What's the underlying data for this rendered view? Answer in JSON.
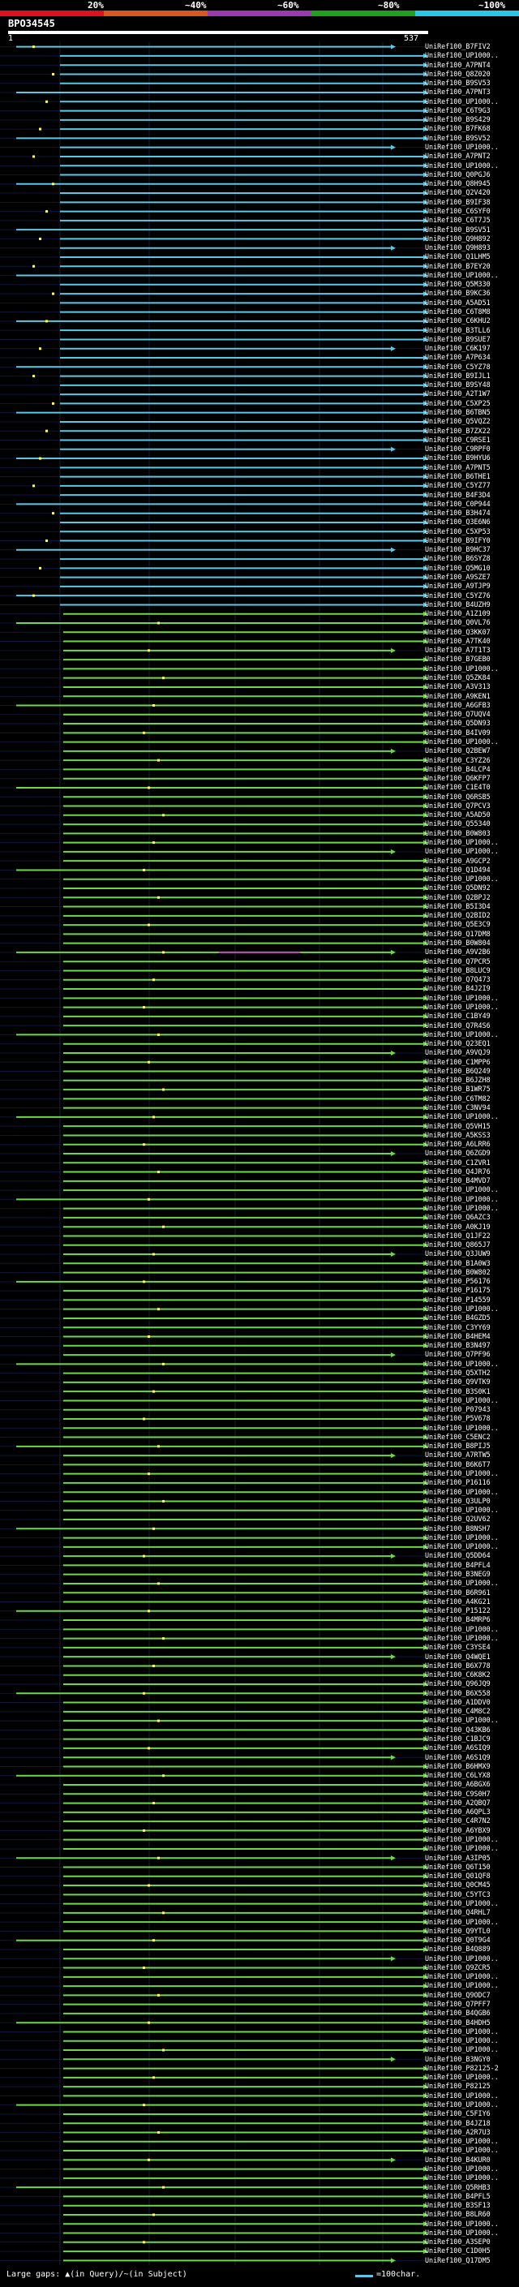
{
  "legend": {
    "ticks": [
      "20%",
      "~40%",
      "~60%",
      "~80%",
      "~100%"
    ],
    "colors": [
      "#e01020",
      "#d85820",
      "#9b3ab0",
      "#1ea01e",
      "#2ac8e8"
    ]
  },
  "query": {
    "name": "BPO34545",
    "start": "1",
    "end": "537"
  },
  "colors": {
    "cyan": "#5ac8e6",
    "green": "#6cd84a",
    "magenta": "#c040c0",
    "dots": "#ffff66"
  },
  "hits": [
    "UniRef100_B7FIV2",
    "UniRef100_UP1000..",
    "UniRef100_A7PNT4",
    "UniRef100_Q8Z020",
    "UniRef100_B9SV53",
    "UniRef100_A7PNT3",
    "UniRef100_UP1000..",
    "UniRef100_C6T9G3",
    "UniRef100_B9S429",
    "UniRef100_B7FK68",
    "UniRef100_B9SV52",
    "UniRef100_UP1000..",
    "UniRef100_A7PNT2",
    "UniRef100_UP1000..",
    "UniRef100_Q0PGJ6",
    "UniRef100_Q8H945",
    "UniRef100_Q2V420",
    "UniRef100_B9IF38",
    "UniRef100_C6SYF0",
    "UniRef100_C6T7J5",
    "UniRef100_B9SV51",
    "UniRef100_Q9H892",
    "UniRef100_Q9H893",
    "UniRef100_Q1LHM5",
    "UniRef100_B7EY20",
    "UniRef100_UP1000..",
    "UniRef100_Q5M330",
    "UniRef100_B9KC36",
    "UniRef100_A5AD51",
    "UniRef100_C6T8M8",
    "UniRef100_C6KHU2",
    "UniRef100_B3TLL6",
    "UniRef100_B9SUE7",
    "UniRef100_C6K197",
    "UniRef100_A7P634",
    "UniRef100_C5YZ78",
    "UniRef100_B9IJL1",
    "UniRef100_B9SY48",
    "UniRef100_A2T1W7",
    "UniRef100_C5XP25",
    "UniRef100_B6TBN5",
    "UniRef100_Q5VQZ2",
    "UniRef100_B7ZX22",
    "UniRef100_C9RSE1",
    "UniRef100_C9RPF0",
    "UniRef100_B9HYU6",
    "UniRef100_A7PNT5",
    "UniRef100_B6THE1",
    "UniRef100_C5YZ77",
    "UniRef100_B4F3D4",
    "UniRef100_C0P944",
    "UniRef100_B3H474",
    "UniRef100_Q3E6N6",
    "UniRef100_C5XP53",
    "UniRef100_B9IFY0",
    "UniRef100_B9HC37",
    "UniRef100_B6SYZ8",
    "UniRef100_Q5MG10",
    "UniRef100_A9SZE7",
    "UniRef100_A9TJP9",
    "UniRef100_C5YZ76",
    "UniRef100_B4UZH9",
    "UniRef100_A1Z109",
    "UniRef100_Q0VL76",
    "UniRef100_Q3KK07",
    "UniRef100_A7TK40",
    "UniRef100_A7T1T3",
    "UniRef100_B7GEB0",
    "UniRef100_UP1000..",
    "UniRef100_Q5ZK84",
    "UniRef100_A3V313",
    "UniRef100_A9KEN1",
    "UniRef100_A6GFB3",
    "UniRef100_Q7UQV4",
    "UniRef100_Q5DN93",
    "UniRef100_B4IV09",
    "UniRef100_UP1000..",
    "UniRef100_Q2BEW7",
    "UniRef100_C3YZ26",
    "UniRef100_B4LCP4",
    "UniRef100_Q6KFP7",
    "UniRef100_C1E4T0",
    "UniRef100_Q6RSB5",
    "UniRef100_Q7PCV3",
    "UniRef100_A5AD50",
    "UniRef100_Q55340",
    "UniRef100_B0W803",
    "UniRef100_UP1000..",
    "UniRef100_UP1000..",
    "UniRef100_A9GCP2",
    "UniRef100_Q1D494",
    "UniRef100_UP1000..",
    "UniRef100_Q5DN92",
    "UniRef100_Q2BPJ2",
    "UniRef100_B5I3D4",
    "UniRef100_Q2BID2",
    "UniRef100_Q5E3C9",
    "UniRef100_Q17DM8",
    "UniRef100_B0W804",
    "UniRef100_A9V2B6",
    "UniRef100_Q7PCR5",
    "UniRef100_B8LUC9",
    "UniRef100_Q7Q473",
    "UniRef100_B4J2I9",
    "UniRef100_UP1000..",
    "UniRef100_UP1000..",
    "UniRef100_C1BY49",
    "UniRef100_Q7R4S6",
    "UniRef100_UP1000..",
    "UniRef100_Q23EQ1",
    "UniRef100_A9VQJ9",
    "UniRef100_C1MPP6",
    "UniRef100_B6Q249",
    "UniRef100_B6JZH8",
    "UniRef100_B1WR75",
    "UniRef100_C6TM82",
    "UniRef100_C3NV94",
    "UniRef100_UP1000..",
    "UniRef100_Q5VH15",
    "UniRef100_A5KSS3",
    "UniRef100_A6LRR6",
    "UniRef100_Q6ZGD9",
    "UniRef100_C1ZVR1",
    "UniRef100_Q4JR76",
    "UniRef100_B4MVD7",
    "UniRef100_UP1000..",
    "UniRef100_UP1000..",
    "UniRef100_UP1000..",
    "UniRef100_Q6AZC3",
    "UniRef100_A0KJ19",
    "UniRef100_Q1JF22",
    "UniRef100_Q865J7",
    "UniRef100_Q3JUW9",
    "UniRef100_B1A0W3",
    "UniRef100_B0W802",
    "UniRef100_P56176",
    "UniRef100_P16175",
    "UniRef100_P14559",
    "UniRef100_UP1000..",
    "UniRef100_B4GZD5",
    "UniRef100_C3YY69",
    "UniRef100_B4HEM4",
    "UniRef100_B3N497",
    "UniRef100_Q7PF96",
    "UniRef100_UP1000..",
    "UniRef100_Q5XTH2",
    "UniRef100_Q9VTK9",
    "UniRef100_B3S0K1",
    "UniRef100_UP1000..",
    "UniRef100_P07943",
    "UniRef100_P5V678",
    "UniRef100_UP1000..",
    "UniRef100_C5ENC2",
    "UniRef100_B8PIJ5",
    "UniRef100_A7RTW5",
    "UniRef100_B6K6T7",
    "UniRef100_UP1000..",
    "UniRef100_P16116",
    "UniRef100_UP1000..",
    "UniRef100_Q3ULP0",
    "UniRef100_UP1000..",
    "UniRef100_Q2UV62",
    "UniRef100_B8NSH7",
    "UniRef100_UP1000..",
    "UniRef100_UP1000..",
    "UniRef100_Q5DD64",
    "UniRef100_B4PFL4",
    "UniRef100_B3NEG9",
    "UniRef100_UP1000..",
    "UniRef100_B6R961",
    "UniRef100_A4KG21",
    "UniRef100_P15122",
    "UniRef100_B4MRP6",
    "UniRef100_UP1000..",
    "UniRef100_UP1000..",
    "UniRef100_C3YSE4",
    "UniRef100_Q4WQE1",
    "UniRef100_B6X778",
    "UniRef100_C6K8K2",
    "UniRef100_Q96JQ9",
    "UniRef100_B6X558",
    "UniRef100_A1DDV0",
    "UniRef100_C4M8C2",
    "UniRef100_UP1000..",
    "UniRef100_Q43KB6",
    "UniRef100_C1BJC9",
    "UniRef100_A6SIQ9",
    "UniRef100_A6S1Q9",
    "UniRef100_B6HMX9",
    "UniRef100_C6LYX8",
    "UniRef100_A6BGX6",
    "UniRef100_C9S0H7",
    "UniRef100_A2QBQ7",
    "UniRef100_A6QPL3",
    "UniRef100_C4R7N2",
    "UniRef100_A6YBX9",
    "UniRef100_UP1000..",
    "UniRef100_UP1000..",
    "UniRef100_A3IP05",
    "UniRef100_Q6T150",
    "UniRef100_Q01QF8",
    "UniRef100_Q0CM45",
    "UniRef100_C5YTC3",
    "UniRef100_UP1000..",
    "UniRef100_Q4RHL7",
    "UniRef100_UP1000..",
    "UniRef100_Q9YTL0",
    "UniRef100_Q0T9G4",
    "UniRef100_B4Q889",
    "UniRef100_UP1000..",
    "UniRef100_Q9ZCR5",
    "UniRef100_UP1000..",
    "UniRef100_UP1000..",
    "UniRef100_Q9ODC7",
    "UniRef100_Q7PFF7",
    "UniRef100_B4QGB6",
    "UniRef100_B4HDH5",
    "UniRef100_UP1000..",
    "UniRef100_UP1000..",
    "UniRef100_UP1000..",
    "UniRef100_B3NGY0",
    "UniRef100_P82125-2",
    "UniRef100_UP1000..",
    "UniRef100_P82125",
    "UniRef100_UP1000..",
    "UniRef100_UP1000..",
    "UniRef100_C5FIY6",
    "UniRef100_B4JZ18",
    "UniRef100_A2R7U3",
    "UniRef100_UP1000..",
    "UniRef100_UP1000..",
    "UniRef100_B4KUR0",
    "UniRef100_UP1000..",
    "UniRef100_UP1000..",
    "UniRef100_Q5RHB3",
    "UniRef100_B4PFL5",
    "UniRef100_B3SF13",
    "UniRef100_B8LR60",
    "UniRef100_UP1000..",
    "UniRef100_UP1000..",
    "UniRef100_A3SEP0",
    "UniRef100_C1D0H5",
    "UniRef100_Q17DM5"
  ],
  "footer": {
    "text": "Large gaps: ▲(in Query)/~(in Subject)",
    "scale": "=100char."
  }
}
